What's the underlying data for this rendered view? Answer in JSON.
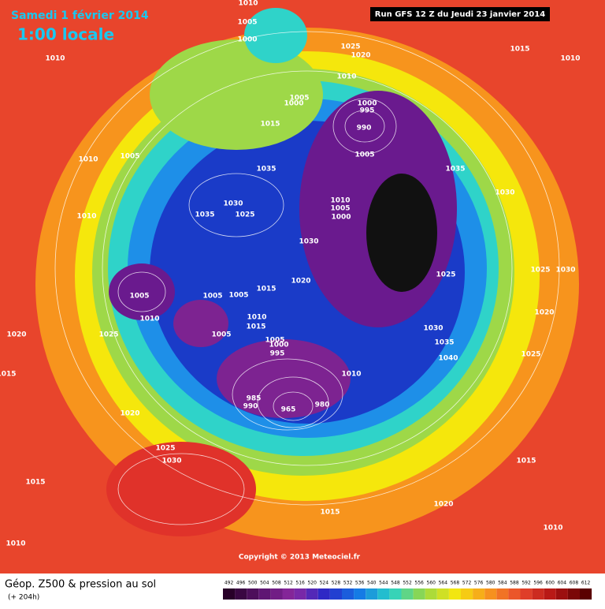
{
  "header": {
    "date": "Samedi 1 février 2014",
    "time": "1:00 locale",
    "run": "Run GFS 12 Z du Jeudi 23 janvier 2014"
  },
  "map": {
    "isobar_labels": [
      1010,
      1005,
      1000,
      1010,
      1025,
      1020,
      1015,
      1010,
      1010,
      1005,
      1000,
      1000,
      995,
      1015,
      990,
      1005,
      1010,
      1005,
      1035,
      1035,
      1030,
      1030,
      1010,
      1005,
      1000,
      1035,
      1025,
      1010,
      1030,
      1025,
      1030,
      1025,
      1020,
      1015,
      1005,
      1005,
      1005,
      1010,
      1010,
      1015,
      1020,
      1030,
      1005,
      1025,
      1020,
      1005,
      1000,
      995,
      1035,
      1040,
      1025,
      1010,
      1015,
      985,
      990,
      965,
      980,
      1020,
      1025,
      1030,
      1015,
      1015,
      1020,
      1015,
      1010,
      1010
    ]
  },
  "footer": {
    "copyright": "Copyright © 2013 Meteociel.fr",
    "title": "Géop. Z500 & pression au sol",
    "subtitle": "(+ 204h)"
  },
  "colorbar": {
    "ticks": [
      492,
      496,
      500,
      504,
      508,
      512,
      516,
      520,
      524,
      528,
      532,
      536,
      540,
      544,
      548,
      552,
      556,
      560,
      564,
      568,
      572,
      576,
      580,
      584,
      588,
      592,
      596,
      600,
      604,
      608,
      612
    ]
  }
}
